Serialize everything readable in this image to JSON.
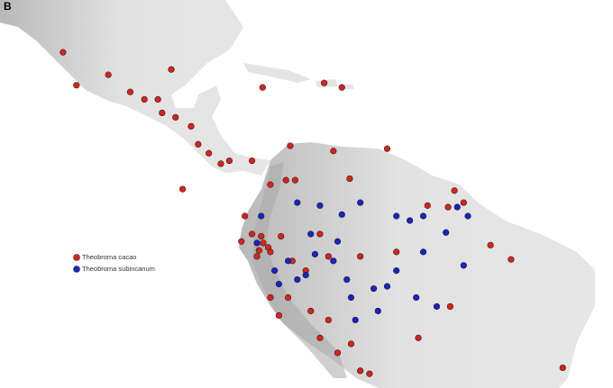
{
  "panel_label": "B",
  "chart_data": {
    "type": "map",
    "xlim": [
      -114.4,
      -27.8
    ],
    "ylim": [
      -22,
      29.9
    ],
    "legend": "left",
    "series": [
      {
        "name": "Theobroma cacao",
        "color": "#e0201b",
        "lon": [
          -105.5,
          -103.6,
          -99.1,
          -96.0,
          -94.0,
          -92.1,
          -91.5,
          -89.6,
          -87.4,
          -86.4,
          -84.9,
          -83.2,
          -82.0,
          -78.8,
          -90.2,
          -77.3,
          -68.6,
          -66.1,
          -73.4,
          -72.7,
          -67.3,
          -59.7,
          -76.2,
          -74.0,
          -88.6,
          -79.8,
          -80.3,
          -78.8,
          -77.5,
          -78.1,
          -76.2,
          -74.7,
          -73.1,
          -71.2,
          -69.2,
          -68.0,
          -63.5,
          -58.4,
          -76.2,
          -75.0,
          -73.7,
          -70.5,
          -68.0,
          -69.2,
          -66.7,
          -64.8,
          -63.5,
          -62.2,
          -50.2,
          -48.9,
          -54.0,
          -51.1,
          -45.1,
          -42.2,
          -34.9,
          -65.0,
          -50.8,
          -55.3,
          -77.2,
          -76.5,
          -77.8
        ],
        "lat": [
          22.9,
          18.5,
          19.9,
          17.6,
          16.6,
          16.6,
          14.8,
          14.2,
          13.0,
          10.6,
          9.4,
          8.0,
          8.4,
          8.4,
          20.6,
          18.2,
          18.8,
          18.2,
          10.4,
          5.8,
          9.7,
          10.0,
          5.2,
          5.8,
          4.6,
          1.0,
          -2.4,
          -1.4,
          -1.7,
          -4.4,
          -3.8,
          -1.7,
          -5.0,
          -6.3,
          -1.4,
          -4.4,
          -4.4,
          -3.8,
          -9.9,
          -12.3,
          -9.9,
          -11.7,
          -12.9,
          -15.3,
          -17.3,
          -16.1,
          -19.7,
          -20.1,
          4.4,
          2.8,
          2.4,
          2.2,
          -2.9,
          -4.8,
          -19.3,
          6.0,
          -11.1,
          -15.3,
          -2.6,
          -3.2,
          -3.6
        ]
      },
      {
        "name": "Theobroma subincanum",
        "color": "#1a22c8",
        "lon": [
          -72.4,
          -69.2,
          -66.1,
          -63.5,
          -58.4,
          -56.5,
          -54.6,
          -49.8,
          -70.5,
          -66.7,
          -69.9,
          -73.7,
          -75.6,
          -75.0,
          -71.2,
          -67.3,
          -65.4,
          -64.8,
          -61.6,
          -61.0,
          -58.4,
          -54.6,
          -51.4,
          -48.9,
          -52.7,
          -55.6,
          -59.7,
          -64.2,
          -77.5,
          -78.1,
          -72.4,
          -48.3
        ],
        "lat": [
          2.8,
          2.4,
          1.2,
          2.8,
          1.0,
          0.4,
          1.0,
          2.2,
          -1.4,
          -2.4,
          -4.1,
          -5.0,
          -6.3,
          -8.1,
          -6.9,
          -5.0,
          -7.5,
          -9.9,
          -8.7,
          -11.7,
          -6.3,
          -3.8,
          -1.2,
          -5.6,
          -11.1,
          -9.9,
          -8.4,
          -12.9,
          1.0,
          -2.6,
          -7.5,
          1.0
        ]
      }
    ]
  }
}
